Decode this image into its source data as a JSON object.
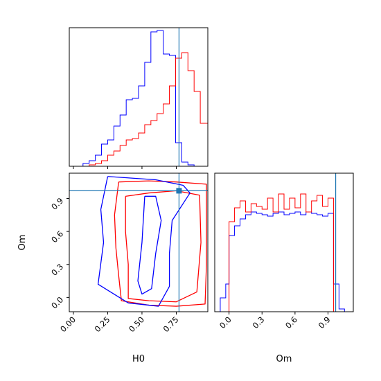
{
  "chart_data": [
    {
      "type": "histogram",
      "panel": "H0 marginal",
      "x_variable": "H0",
      "xlim": [
        -0.03,
        0.98
      ],
      "bin_edges": [
        0.07,
        0.115,
        0.16,
        0.205,
        0.25,
        0.295,
        0.34,
        0.385,
        0.43,
        0.475,
        0.52,
        0.565,
        0.61,
        0.655,
        0.7,
        0.745,
        0.79,
        0.835,
        0.88,
        0.925,
        0.98
      ],
      "series": [
        {
          "color": "#0000ff",
          "counts": [
            0.02,
            0.04,
            0.08,
            0.16,
            0.19,
            0.29,
            0.37,
            0.48,
            0.49,
            0.58,
            0.75,
            0.97,
            0.98,
            0.81,
            0.8,
            0.17,
            0.03,
            0.01,
            0.0,
            0.0
          ]
        },
        {
          "color": "#ff0000",
          "counts": [
            0.0,
            0.01,
            0.02,
            0.04,
            0.08,
            0.11,
            0.15,
            0.19,
            0.2,
            0.24,
            0.3,
            0.33,
            0.38,
            0.45,
            0.58,
            0.78,
            0.82,
            0.69,
            0.54,
            0.31
          ]
        }
      ],
      "truth_line": 0.77
    },
    {
      "type": "contour",
      "panel": "H0 vs Om",
      "x_variable": "H0",
      "y_variable": "Om",
      "xlim": [
        -0.03,
        0.98
      ],
      "ylim": [
        -0.13,
        1.13
      ],
      "xticks": [
        "0.00",
        "0.25",
        "0.50",
        "0.75"
      ],
      "yticks": [
        "0.0",
        "0.3",
        "0.6",
        "0.9"
      ],
      "series": [
        {
          "color": "#ff0000",
          "contours": [
            [
              [
                0.33,
                1.05
              ],
              [
                0.55,
                1.06
              ],
              [
                0.75,
                1.05
              ],
              [
                0.97,
                1.03
              ],
              [
                0.97,
                0.93
              ],
              [
                0.97,
                0.3
              ],
              [
                0.96,
                -0.06
              ],
              [
                0.75,
                -0.08
              ],
              [
                0.55,
                -0.07
              ],
              [
                0.35,
                -0.03
              ],
              [
                0.33,
                0.2
              ],
              [
                0.31,
                0.45
              ],
              [
                0.3,
                0.75
              ],
              [
                0.33,
                1.05
              ]
            ],
            [
              [
                0.38,
                0.92
              ],
              [
                0.55,
                0.95
              ],
              [
                0.75,
                0.97
              ],
              [
                0.92,
                0.93
              ],
              [
                0.93,
                0.5
              ],
              [
                0.9,
                0.05
              ],
              [
                0.75,
                -0.04
              ],
              [
                0.55,
                -0.03
              ],
              [
                0.4,
                -0.01
              ],
              [
                0.4,
                0.3
              ],
              [
                0.38,
                0.6
              ],
              [
                0.38,
                0.92
              ]
            ]
          ]
        },
        {
          "color": "#0000ff",
          "contours": [
            [
              [
                0.25,
                1.1
              ],
              [
                0.6,
                1.07
              ],
              [
                0.8,
                1.02
              ],
              [
                0.85,
                0.95
              ],
              [
                0.72,
                0.7
              ],
              [
                0.7,
                0.4
              ],
              [
                0.7,
                0.1
              ],
              [
                0.62,
                -0.08
              ],
              [
                0.4,
                -0.05
              ],
              [
                0.18,
                0.12
              ],
              [
                0.22,
                0.5
              ],
              [
                0.2,
                0.8
              ],
              [
                0.25,
                1.1
              ]
            ],
            [
              [
                0.52,
                0.92
              ],
              [
                0.6,
                0.92
              ],
              [
                0.64,
                0.7
              ],
              [
                0.6,
                0.4
              ],
              [
                0.57,
                0.08
              ],
              [
                0.5,
                0.03
              ],
              [
                0.47,
                0.15
              ],
              [
                0.5,
                0.5
              ],
              [
                0.52,
                0.92
              ]
            ]
          ]
        }
      ],
      "truth_point": [
        0.77,
        0.97
      ],
      "xlabel": "H0",
      "ylabel": "Om"
    },
    {
      "type": "histogram",
      "panel": "Om marginal",
      "x_variable": "Om",
      "xlim": [
        -0.13,
        1.13
      ],
      "xticks": [
        "0.0",
        "0.3",
        "0.6",
        "0.9"
      ],
      "bin_edges": [
        -0.13,
        -0.08,
        -0.03,
        0.0,
        0.05,
        0.1,
        0.15,
        0.2,
        0.25,
        0.3,
        0.35,
        0.4,
        0.45,
        0.5,
        0.55,
        0.6,
        0.65,
        0.7,
        0.75,
        0.8,
        0.85,
        0.9,
        0.95,
        1.0,
        1.05,
        1.13
      ],
      "series": [
        {
          "color": "#0000ff",
          "counts": [
            0.0,
            0.1,
            0.2,
            0.55,
            0.62,
            0.67,
            0.7,
            0.72,
            0.71,
            0.7,
            0.69,
            0.71,
            0.72,
            0.7,
            0.71,
            0.72,
            0.7,
            0.72,
            0.71,
            0.7,
            0.69,
            0.71,
            0.2,
            0.02,
            0.0
          ]
        },
        {
          "color": "#ff0000",
          "counts": [
            0.0,
            0.0,
            0.0,
            0.65,
            0.75,
            0.8,
            0.72,
            0.78,
            0.76,
            0.74,
            0.82,
            0.72,
            0.85,
            0.74,
            0.82,
            0.75,
            0.85,
            0.72,
            0.8,
            0.84,
            0.76,
            0.82,
            0.0,
            0.0,
            0.0
          ]
        }
      ],
      "truth_line": 0.97,
      "xlabel": "Om"
    }
  ]
}
